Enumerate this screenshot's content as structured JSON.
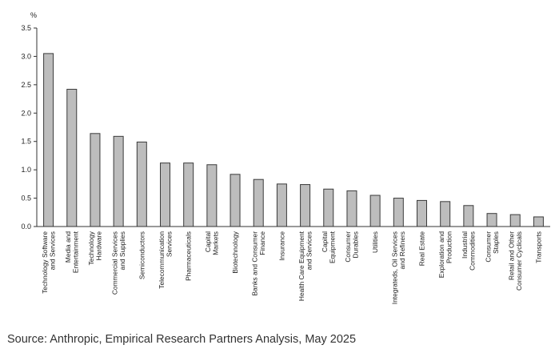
{
  "chart_data": {
    "type": "bar",
    "title": "",
    "xlabel": "",
    "ylabel": "%",
    "ylim": [
      0,
      3.5
    ],
    "yticks": [
      "0.0",
      "0.5",
      "1.0",
      "1.5",
      "2.0",
      "2.5",
      "3.0",
      "3.5"
    ],
    "grid": false,
    "bar_color": "#bdbdbd",
    "bar_edge_color": "#3a3a3a",
    "categories": [
      [
        "Technology Software",
        "and Services"
      ],
      [
        "Media and",
        "Entertainment"
      ],
      [
        "Technology",
        "Hardware"
      ],
      [
        "Commercial Services",
        "and Supplies"
      ],
      [
        "Semiconductors"
      ],
      [
        "Telecommunication",
        "Services"
      ],
      [
        "Pharmaceuticals"
      ],
      [
        "Capital",
        "Markets"
      ],
      [
        "Biotechnology"
      ],
      [
        "Banks and Consumer",
        "Finance"
      ],
      [
        "Insurance"
      ],
      [
        "Health Care Equipment",
        "and Services"
      ],
      [
        "Capital",
        "Equipment"
      ],
      [
        "Consumer",
        "Durables"
      ],
      [
        "Utilities"
      ],
      [
        "Integrateds, Oil Services",
        "and Refiners"
      ],
      [
        "Real Estate"
      ],
      [
        "Exploration and",
        "Production"
      ],
      [
        "Industrial",
        "Commodities"
      ],
      [
        "Consumer",
        "Staples"
      ],
      [
        "Retail and Other",
        "Consumer Cyclicals"
      ],
      [
        "Transports"
      ]
    ],
    "values": [
      3.05,
      2.42,
      1.64,
      1.59,
      1.49,
      1.12,
      1.12,
      1.09,
      0.92,
      0.83,
      0.75,
      0.74,
      0.66,
      0.63,
      0.55,
      0.5,
      0.46,
      0.44,
      0.37,
      0.23,
      0.21,
      0.17
    ]
  },
  "source": "Source: Anthropic, Empirical Research Partners Analysis, May 2025"
}
